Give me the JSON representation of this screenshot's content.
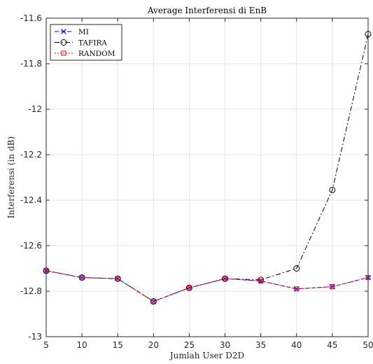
{
  "chart_data": {
    "type": "line",
    "title": "Average Interferensi di EnB",
    "xlabel": "Jumlah User D2D",
    "ylabel": "Interferensi (in dB)",
    "xlim": [
      5,
      50
    ],
    "ylim": [
      -13,
      -11.6
    ],
    "x": [
      5,
      10,
      15,
      20,
      25,
      30,
      35,
      40,
      45,
      50
    ],
    "x_ticks": [
      "5",
      "10",
      "15",
      "20",
      "25",
      "30",
      "35",
      "40",
      "45",
      "50"
    ],
    "y_ticks": [
      "-11.6",
      "-11.8",
      "-12",
      "-12.2",
      "-12.4",
      "-12.6",
      "-12.8",
      "-13"
    ],
    "y_tick_values": [
      -11.6,
      -11.8,
      -12,
      -12.2,
      -12.4,
      -12.6,
      -12.8,
      -13
    ],
    "grid": true,
    "legend_position": "top-left",
    "series": [
      {
        "name": "MI",
        "color": "#0000ff",
        "line_style": "dashed",
        "marker": "x",
        "values": [
          -12.71,
          -12.74,
          -12.745,
          -12.845,
          -12.785,
          -12.745,
          -12.755,
          -12.79,
          -12.78,
          -12.74
        ]
      },
      {
        "name": "TAFIRA",
        "color": "#000000",
        "line_style": "dash-dot",
        "marker": "circle",
        "values": [
          -12.71,
          -12.74,
          -12.745,
          -12.845,
          -12.785,
          -12.745,
          -12.75,
          -12.7,
          -12.355,
          -11.67
        ]
      },
      {
        "name": "RANDOM",
        "color": "#ff0000",
        "line_style": "dotted",
        "marker": "square",
        "values": [
          -12.71,
          -12.74,
          -12.745,
          -12.845,
          -12.785,
          -12.745,
          -12.755,
          -12.79,
          -12.78,
          -12.74
        ]
      }
    ]
  }
}
